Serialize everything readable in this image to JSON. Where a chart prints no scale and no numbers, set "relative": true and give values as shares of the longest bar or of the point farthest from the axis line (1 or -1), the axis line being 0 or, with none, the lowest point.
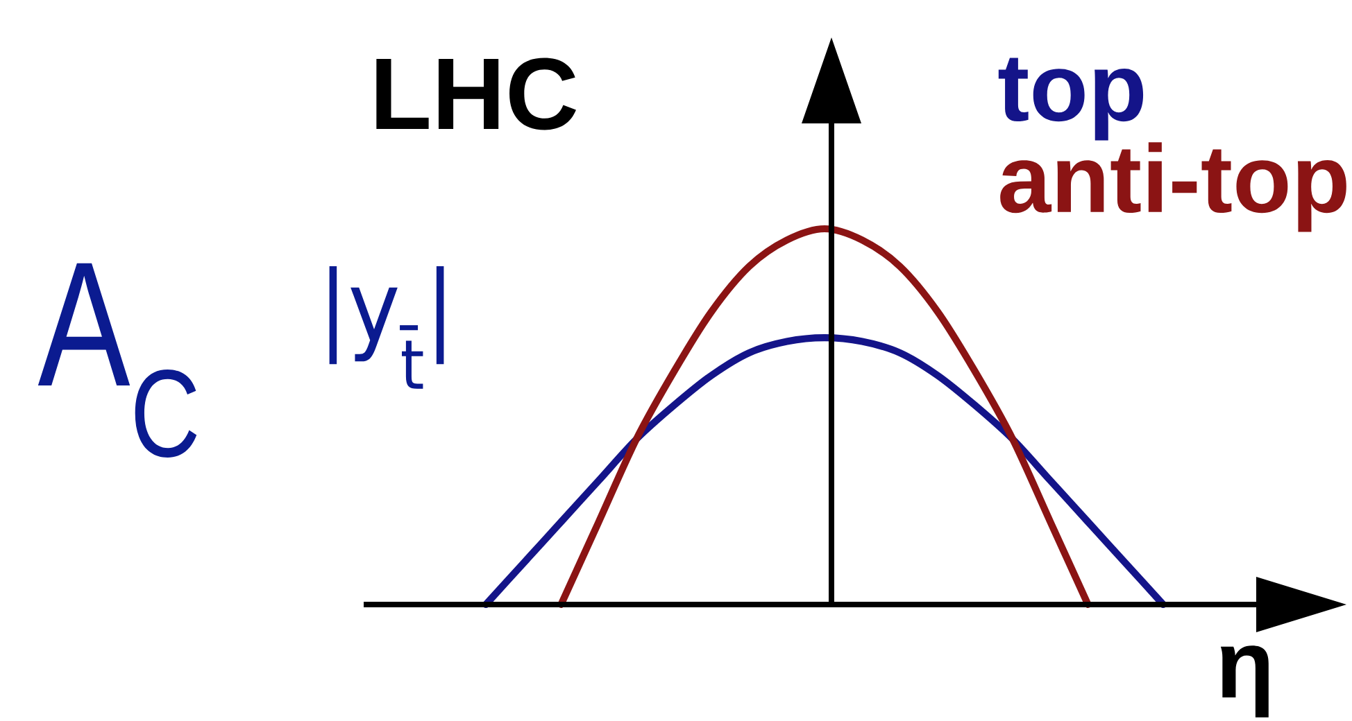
{
  "chart_data": {
    "type": "line",
    "title": "LHC",
    "xlabel": "η",
    "annotations": [
      "A$_{C}$",
      "|y$_{t̄}$|"
    ],
    "categories": [
      null,
      null,
      null,
      null,
      null,
      null,
      null,
      null,
      null,
      null,
      null,
      null,
      null,
      null,
      null,
      null,
      null,
      null,
      null
    ],
    "relative": true,
    "legend": "top right",
    "series": [
      {
        "name": "top",
        "color": "#141489",
        "values": [
          0,
          0.11,
          0.22,
          0.33,
          0.44,
          0.53,
          0.61,
          0.67,
          0.7,
          0.71,
          0.7,
          0.67,
          0.61,
          0.53,
          0.44,
          0.33,
          0.22,
          0.11,
          0
        ]
      },
      {
        "name": "anti-top",
        "color": "#8b1414",
        "values": [
          null,
          null,
          0,
          0.22,
          0.44,
          0.62,
          0.78,
          0.9,
          0.97,
          1,
          0.97,
          0.9,
          0.78,
          0.62,
          0.44,
          0.22,
          0,
          null,
          null
        ]
      }
    ]
  }
}
